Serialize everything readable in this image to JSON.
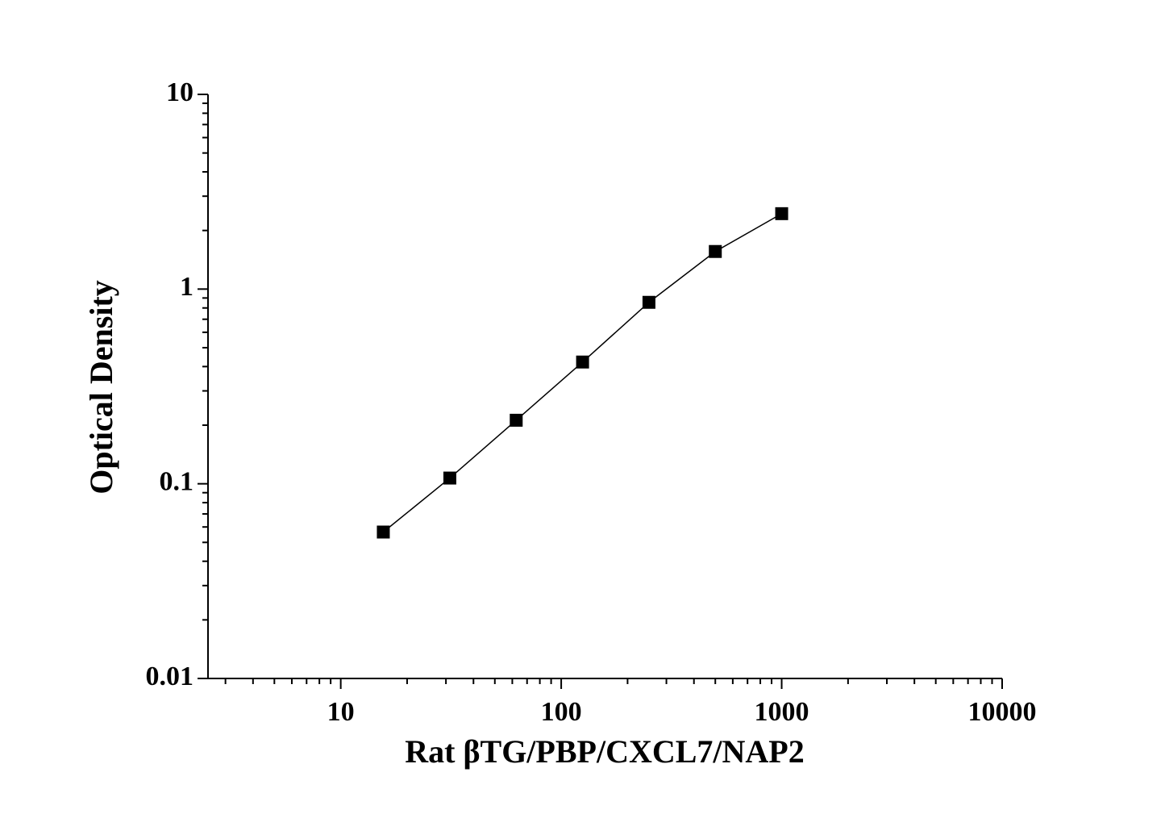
{
  "chart_data": {
    "type": "line",
    "x_label": "Rat βTG/PBP/CXCL7/NAP2",
    "y_label": "Optical Density",
    "x": [
      15.6,
      31.25,
      62.5,
      125,
      250,
      500,
      1000
    ],
    "series": [
      {
        "color": "#000000",
        "values": [
          0.0565,
          0.107,
          0.212,
          0.422,
          0.855,
          1.56,
          2.44
        ]
      }
    ],
    "marker": "square",
    "xscale": "log",
    "yscale": "log",
    "xlim": [
      2.5,
      10000
    ],
    "ylim": [
      0.01,
      10
    ],
    "xticks": [
      10,
      100,
      1000,
      10000
    ],
    "yticks": [
      0.01,
      0.1,
      1,
      10
    ],
    "grid": false
  }
}
